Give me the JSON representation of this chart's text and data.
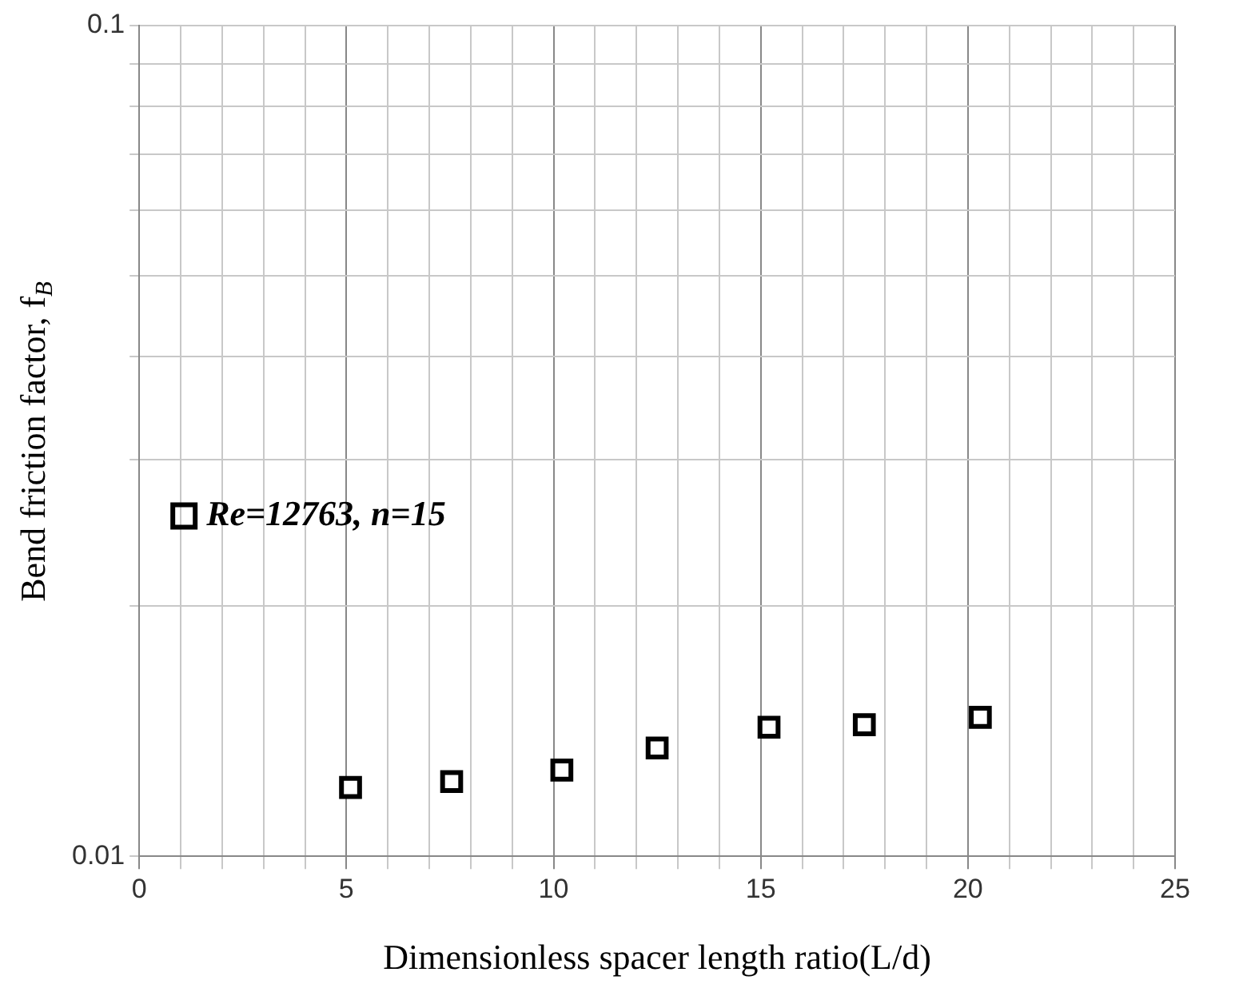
{
  "chart_data": {
    "type": "scatter",
    "xlabel": "Dimensionless spacer length ratio(L/d)",
    "ylabel": "Bend friction factor, f$_{B}$",
    "x": [
      5.1,
      7.54,
      10.2,
      12.5,
      15.2,
      17.5,
      20.3
    ],
    "series": [
      {
        "name": "Re=12763, n=15",
        "color": "#000000",
        "values": [
          0.0121,
          0.0123,
          0.0127,
          0.0135,
          0.0143,
          0.0144,
          0.0147
        ]
      }
    ],
    "xlim": [
      0,
      25
    ],
    "xticks": [
      0,
      {
        "value": 1,
        "label": null
      },
      {
        "value": 2,
        "label": null
      },
      {
        "value": 3,
        "label": null
      },
      {
        "value": 4,
        "label": null
      },
      5,
      {
        "value": 6,
        "label": null
      },
      {
        "value": 7,
        "label": null
      },
      {
        "value": 8,
        "label": null
      },
      {
        "value": 9,
        "label": null
      },
      10,
      {
        "value": 11,
        "label": null
      },
      {
        "value": 12,
        "label": null
      },
      {
        "value": 13,
        "label": null
      },
      {
        "value": 14,
        "label": null
      },
      15,
      {
        "value": 16,
        "label": null
      },
      {
        "value": 17,
        "label": null
      },
      {
        "value": 18,
        "label": null
      },
      {
        "value": 19,
        "label": null
      },
      20,
      {
        "value": 21,
        "label": null
      },
      {
        "value": 22,
        "label": null
      },
      {
        "value": 23,
        "label": null
      },
      {
        "value": 24,
        "label": null
      },
      25
    ],
    "ylim": [
      0.01,
      0.1
    ],
    "yticks": [
      0.01,
      {
        "value": 0.02,
        "label": null
      },
      {
        "value": 0.03,
        "label": null
      },
      {
        "value": 0.04,
        "label": null
      },
      {
        "value": 0.05,
        "label": null
      },
      {
        "value": 0.06,
        "label": null
      },
      {
        "value": 0.07,
        "label": null
      },
      {
        "value": 0.08,
        "label": null
      },
      {
        "value": 0.09,
        "label": null
      },
      0.1
    ],
    "log": "y",
    "grid": true,
    "legend": "left",
    "marker": "square"
  }
}
